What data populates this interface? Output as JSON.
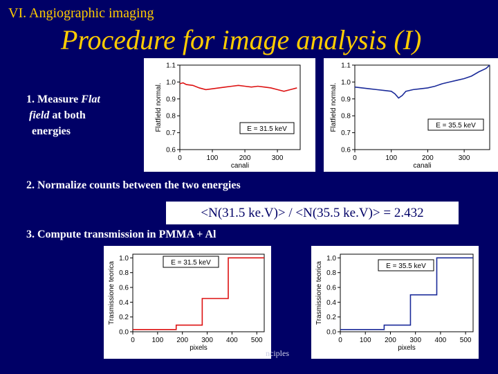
{
  "header": {
    "section": "VI. Angiographic imaging",
    "title": "Procedure for image analysis (I)"
  },
  "steps": {
    "step1_prefix": "1. Measure ",
    "step1_italic1": "Flat",
    "step1_italic2": "field",
    "step1_rest": " at both",
    "step1_line3": "energies",
    "step2": "2. Normalize counts between the two energies",
    "step3": "3. Compute transmission in  PMMA + Al"
  },
  "ratio": "<N(31.5 ke.V)> / <N(35.5 ke.V)> = 2.432",
  "footer_fragment": "nciples",
  "colors": {
    "background": "#000066",
    "title": "#ffcc00",
    "red_series": "#dd1111",
    "blue_series": "#1a2a99"
  },
  "chart_data": [
    {
      "type": "line",
      "energy_label": "E = 31.5 keV",
      "xlabel": "canali",
      "ylabel": "Flatfield normal.",
      "xticks": [
        "0",
        "100",
        "200",
        "300"
      ],
      "yticks": [
        "0.6",
        "0.7",
        "0.8",
        "0.9",
        "1.0",
        "1.1"
      ],
      "xlim": [
        0,
        370
      ],
      "ylim": [
        0.6,
        1.1
      ],
      "series": [
        {
          "color": "#dd1111",
          "x": [
            0,
            10,
            20,
            40,
            60,
            80,
            100,
            120,
            140,
            160,
            180,
            200,
            220,
            240,
            260,
            280,
            300,
            320,
            340,
            360
          ],
          "y": [
            0.99,
            0.995,
            0.985,
            0.98,
            0.965,
            0.955,
            0.96,
            0.965,
            0.97,
            0.975,
            0.98,
            0.975,
            0.97,
            0.975,
            0.97,
            0.965,
            0.955,
            0.945,
            0.955,
            0.965
          ]
        }
      ]
    },
    {
      "type": "line",
      "energy_label": "E = 35.5 keV",
      "xlabel": "canali",
      "ylabel": "Flatfield normal.",
      "xticks": [
        "0",
        "100",
        "200",
        "300"
      ],
      "yticks": [
        "0.6",
        "0.7",
        "0.8",
        "0.9",
        "1.0",
        "1.1"
      ],
      "xlim": [
        0,
        370
      ],
      "ylim": [
        0.6,
        1.1
      ],
      "series": [
        {
          "color": "#1a2a99",
          "x": [
            0,
            20,
            40,
            60,
            80,
            100,
            110,
            120,
            130,
            140,
            160,
            180,
            200,
            220,
            240,
            260,
            280,
            300,
            320,
            340,
            360,
            370
          ],
          "y": [
            0.97,
            0.965,
            0.96,
            0.955,
            0.95,
            0.945,
            0.93,
            0.905,
            0.92,
            0.945,
            0.955,
            0.96,
            0.965,
            0.975,
            0.99,
            1.0,
            1.01,
            1.02,
            1.035,
            1.06,
            1.08,
            1.1
          ]
        }
      ]
    },
    {
      "type": "line",
      "energy_label": "E = 31.5 keV",
      "xlabel": "pixels",
      "ylabel": "Trasmissione teorica",
      "xticks": [
        "0",
        "100",
        "200",
        "300",
        "400",
        "500"
      ],
      "yticks": [
        "0.0",
        "0.2",
        "0.4",
        "0.6",
        "0.8",
        "1.0"
      ],
      "xlim": [
        0,
        530
      ],
      "ylim": [
        0,
        1.05
      ],
      "series": [
        {
          "color": "#dd1111",
          "x": [
            0,
            175,
            175,
            280,
            280,
            385,
            385,
            530
          ],
          "y": [
            0.03,
            0.03,
            0.09,
            0.09,
            0.45,
            0.45,
            1.0,
            1.0
          ]
        }
      ]
    },
    {
      "type": "line",
      "energy_label": "E = 35.5 keV",
      "xlabel": "pixels",
      "ylabel": "Trasmissione teorica",
      "xticks": [
        "0",
        "100",
        "200",
        "300",
        "400",
        "500"
      ],
      "yticks": [
        "0.0",
        "0.2",
        "0.4",
        "0.6",
        "0.8",
        "1.0"
      ],
      "xlim": [
        0,
        530
      ],
      "ylim": [
        0,
        1.05
      ],
      "series": [
        {
          "color": "#1a2a99",
          "x": [
            0,
            175,
            175,
            280,
            280,
            385,
            385,
            530
          ],
          "y": [
            0.03,
            0.03,
            0.09,
            0.09,
            0.5,
            0.5,
            1.0,
            1.0
          ]
        }
      ]
    }
  ]
}
